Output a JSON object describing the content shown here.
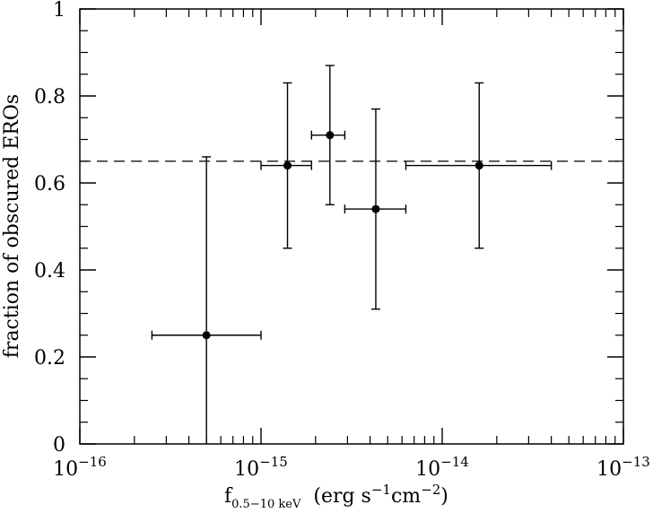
{
  "chart_data": {
    "type": "scatter",
    "xscale": "log",
    "xlim": [
      1e-16,
      1e-13
    ],
    "ylim": [
      0,
      1
    ],
    "ylabel": "fraction of obscured EROs",
    "xlabel": {
      "main": "f",
      "subscript": "0.5−10 keV",
      "units_prefix": "(erg s",
      "units_exp1": "−1",
      "units_mid": "cm",
      "units_exp2": "−2",
      "units_suffix": ")"
    },
    "x_ticks": [
      {
        "value": 1e-16,
        "base": "10",
        "exp": "−16"
      },
      {
        "value": 1e-15,
        "base": "10",
        "exp": "−15"
      },
      {
        "value": 1e-14,
        "base": "10",
        "exp": "−14"
      },
      {
        "value": 1e-13,
        "base": "10",
        "exp": "−13"
      }
    ],
    "y_ticks": [
      {
        "value": 0,
        "label": "0"
      },
      {
        "value": 0.2,
        "label": "0.2"
      },
      {
        "value": 0.4,
        "label": "0.4"
      },
      {
        "value": 0.6,
        "label": "0.6"
      },
      {
        "value": 0.8,
        "label": "0.8"
      },
      {
        "value": 1,
        "label": "1"
      }
    ],
    "reference_line": {
      "y": 0.65,
      "style": "dashed"
    },
    "points": [
      {
        "x": 5e-16,
        "y": 0.25,
        "xlo": 2.5e-16,
        "xhi": 1e-15,
        "ylo": 0.0,
        "yhi": 0.66
      },
      {
        "x": 1.4e-15,
        "y": 0.64,
        "xlo": 1e-15,
        "xhi": 1.9e-15,
        "ylo": 0.45,
        "yhi": 0.83
      },
      {
        "x": 2.4e-15,
        "y": 0.71,
        "xlo": 1.9e-15,
        "xhi": 2.9e-15,
        "ylo": 0.55,
        "yhi": 0.87
      },
      {
        "x": 4.3e-15,
        "y": 0.54,
        "xlo": 2.9e-15,
        "xhi": 6.3e-15,
        "ylo": 0.31,
        "yhi": 0.77
      },
      {
        "x": 1.6e-14,
        "y": 0.64,
        "xlo": 6.3e-15,
        "xhi": 4e-14,
        "ylo": 0.45,
        "yhi": 0.83
      }
    ]
  }
}
